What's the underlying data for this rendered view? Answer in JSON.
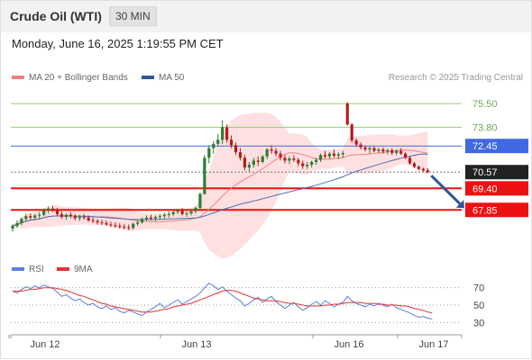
{
  "header": {
    "title": "Crude Oil (WTI)",
    "timeframe": "30 MIN"
  },
  "datetime": "Monday, June 16, 2025 1:19:55 PM CET",
  "legend": {
    "ma_bb": "MA 20 + Bollinger Bands",
    "ma50": "MA 50",
    "credit": "Research © 2025 Trading Central"
  },
  "rsi_legend": {
    "rsi": "RSI",
    "ma9": "9MA"
  },
  "colors": {
    "bands": "#ffd6d6",
    "ma20": "#f08080",
    "ma50": "#4a6fb5",
    "up": "#2e7d32",
    "down": "#b71c1c",
    "support": "#ee1111",
    "pivot": "#4169e1",
    "resistance": "#90d070",
    "current": "#222222",
    "rsi": "#5b7fdb",
    "rsi_ma": "#e33333"
  },
  "chart_data": [
    {
      "type": "candlestick",
      "x_labels": [
        "Jun 12",
        "Jun 13",
        "Jun 16",
        "Jun 17"
      ],
      "ylim": [
        64.5,
        76.8
      ],
      "levels": [
        {
          "value": 75.5,
          "label": "75.50",
          "kind": "resistance"
        },
        {
          "value": 73.8,
          "label": "73.80",
          "kind": "resistance"
        },
        {
          "value": 72.45,
          "label": "72.45",
          "kind": "pivot"
        },
        {
          "value": 70.57,
          "label": "70.57",
          "kind": "current"
        },
        {
          "value": 69.4,
          "label": "69.40",
          "kind": "support"
        },
        {
          "value": 67.85,
          "label": "67.85",
          "kind": "support"
        }
      ],
      "ohlc": [
        [
          66.5,
          66.85,
          66.3,
          66.7
        ],
        [
          66.7,
          67.1,
          66.55,
          66.9
        ],
        [
          66.9,
          67.3,
          66.75,
          67.2
        ],
        [
          67.2,
          67.55,
          67.0,
          67.4
        ],
        [
          67.4,
          67.6,
          67.15,
          67.3
        ],
        [
          67.3,
          67.55,
          67.1,
          67.45
        ],
        [
          67.45,
          67.7,
          67.25,
          67.5
        ],
        [
          67.5,
          67.95,
          67.4,
          67.85
        ],
        [
          67.85,
          68.1,
          67.6,
          67.95
        ],
        [
          67.95,
          68.15,
          67.7,
          67.8
        ],
        [
          67.8,
          68.0,
          67.4,
          67.55
        ],
        [
          67.55,
          67.75,
          67.2,
          67.35
        ],
        [
          67.35,
          67.6,
          67.15,
          67.5
        ],
        [
          67.5,
          67.7,
          67.25,
          67.4
        ],
        [
          67.4,
          67.55,
          67.1,
          67.25
        ],
        [
          67.25,
          67.5,
          67.05,
          67.35
        ],
        [
          67.35,
          67.55,
          67.15,
          67.3
        ],
        [
          67.3,
          67.45,
          67.0,
          67.1
        ],
        [
          67.1,
          67.3,
          66.9,
          67.05
        ],
        [
          67.05,
          67.2,
          66.8,
          66.95
        ],
        [
          66.95,
          67.15,
          66.75,
          66.9
        ],
        [
          66.9,
          67.1,
          66.7,
          66.8
        ],
        [
          66.8,
          67.0,
          66.6,
          66.75
        ],
        [
          66.75,
          66.95,
          66.55,
          66.7
        ],
        [
          66.7,
          66.9,
          66.5,
          66.65
        ],
        [
          66.65,
          66.85,
          66.45,
          66.6
        ],
        [
          66.6,
          66.8,
          66.4,
          66.55
        ],
        [
          66.55,
          66.95,
          66.45,
          66.85
        ],
        [
          66.85,
          67.1,
          66.7,
          66.95
        ],
        [
          66.95,
          67.3,
          66.85,
          67.2
        ],
        [
          67.2,
          67.45,
          67.05,
          67.3
        ],
        [
          67.3,
          67.5,
          67.1,
          67.25
        ],
        [
          67.25,
          67.45,
          67.05,
          67.35
        ],
        [
          67.35,
          67.55,
          67.15,
          67.4
        ],
        [
          67.4,
          67.65,
          67.25,
          67.5
        ],
        [
          67.5,
          67.75,
          67.3,
          67.55
        ],
        [
          67.55,
          67.85,
          67.4,
          67.7
        ],
        [
          67.7,
          67.95,
          67.55,
          67.8
        ],
        [
          67.8,
          68.0,
          67.45,
          67.55
        ],
        [
          67.55,
          67.75,
          67.35,
          67.6
        ],
        [
          67.6,
          67.85,
          67.45,
          67.75
        ],
        [
          67.75,
          68.1,
          67.6,
          68.0
        ],
        [
          68.0,
          69.1,
          67.9,
          69.0
        ],
        [
          69.0,
          71.8,
          68.95,
          71.6
        ],
        [
          71.6,
          72.5,
          71.2,
          72.3
        ],
        [
          72.3,
          72.8,
          71.9,
          72.6
        ],
        [
          72.6,
          73.3,
          72.4,
          72.9
        ],
        [
          72.9,
          74.3,
          72.6,
          73.8
        ],
        [
          73.8,
          74.0,
          72.7,
          72.9
        ],
        [
          72.9,
          73.2,
          72.3,
          72.5
        ],
        [
          72.5,
          72.7,
          71.8,
          72.0
        ],
        [
          72.0,
          72.3,
          71.4,
          71.6
        ],
        [
          71.6,
          71.8,
          70.7,
          70.9
        ],
        [
          70.9,
          71.3,
          70.6,
          71.1
        ],
        [
          71.1,
          71.6,
          70.9,
          71.4
        ],
        [
          71.4,
          71.7,
          71.0,
          71.3
        ],
        [
          71.3,
          71.8,
          71.2,
          71.7
        ],
        [
          71.7,
          72.3,
          71.5,
          72.2
        ],
        [
          72.2,
          72.5,
          71.9,
          72.1
        ],
        [
          72.1,
          72.3,
          71.7,
          71.9
        ],
        [
          71.9,
          72.1,
          71.4,
          71.6
        ],
        [
          71.6,
          71.8,
          71.2,
          71.4
        ],
        [
          71.4,
          71.7,
          71.15,
          71.55
        ],
        [
          71.55,
          71.8,
          71.3,
          71.45
        ],
        [
          71.45,
          71.6,
          71.0,
          71.2
        ],
        [
          71.2,
          71.4,
          70.8,
          71.0
        ],
        [
          71.0,
          71.3,
          70.8,
          71.1
        ],
        [
          71.1,
          71.4,
          70.9,
          71.3
        ],
        [
          71.3,
          71.6,
          71.1,
          71.45
        ],
        [
          71.45,
          71.9,
          71.3,
          71.8
        ],
        [
          71.8,
          72.1,
          71.55,
          71.7
        ],
        [
          71.7,
          72.0,
          71.5,
          71.9
        ],
        [
          71.9,
          72.2,
          71.6,
          71.75
        ],
        [
          71.75,
          72.0,
          71.5,
          71.85
        ],
        [
          71.85,
          72.1,
          71.6,
          71.95
        ],
        [
          75.5,
          75.6,
          73.9,
          74.0
        ],
        [
          74.0,
          74.1,
          72.7,
          72.85
        ],
        [
          72.85,
          73.0,
          72.4,
          72.55
        ],
        [
          72.55,
          72.7,
          72.2,
          72.35
        ],
        [
          72.35,
          72.5,
          72.05,
          72.2
        ],
        [
          72.2,
          72.4,
          71.9,
          72.3
        ],
        [
          72.3,
          72.45,
          72.0,
          72.1
        ],
        [
          72.1,
          72.3,
          71.95,
          72.2
        ],
        [
          72.2,
          72.35,
          71.9,
          72.05
        ],
        [
          72.05,
          72.25,
          71.85,
          72.15
        ],
        [
          72.15,
          72.3,
          71.8,
          71.95
        ],
        [
          71.95,
          72.2,
          71.8,
          72.1
        ],
        [
          72.1,
          72.3,
          71.8,
          71.9
        ],
        [
          71.9,
          72.0,
          71.5,
          71.6
        ],
        [
          71.6,
          71.7,
          71.1,
          71.2
        ],
        [
          71.2,
          71.3,
          70.85,
          70.95
        ],
        [
          70.95,
          71.05,
          70.7,
          70.8
        ],
        [
          70.8,
          70.9,
          70.6,
          70.7
        ],
        [
          70.7,
          70.85,
          70.5,
          70.57
        ]
      ],
      "forecast": [
        70.57,
        68.1
      ]
    },
    {
      "type": "line",
      "name": "RSI",
      "y_ticks": [
        70,
        50,
        30
      ],
      "ylim": [
        20,
        80
      ],
      "rsi": [
        66,
        64,
        68,
        71,
        69,
        72,
        70,
        73,
        71,
        69,
        65,
        60,
        62,
        58,
        55,
        57,
        53,
        50,
        52,
        48,
        46,
        49,
        45,
        47,
        43,
        41,
        44,
        42,
        40,
        38,
        42,
        45,
        48,
        52,
        47,
        50,
        53,
        56,
        51,
        54,
        57,
        60,
        64,
        70,
        75,
        72,
        68,
        71,
        66,
        62,
        58,
        55,
        49,
        52,
        56,
        59,
        53,
        57,
        60,
        54,
        50,
        46,
        50,
        53,
        48,
        44,
        47,
        51,
        54,
        50,
        55,
        52,
        48,
        51,
        53,
        60,
        55,
        52,
        50,
        48,
        51,
        49,
        52,
        50,
        48,
        51,
        47,
        45,
        43,
        41,
        38,
        36,
        37,
        35,
        34
      ],
      "rsi_ma": [
        66,
        66,
        66,
        67,
        68,
        68,
        69,
        70,
        70,
        70,
        69,
        68,
        67,
        65,
        63,
        61,
        60,
        58,
        56,
        54,
        52,
        51,
        49,
        48,
        47,
        46,
        45,
        44,
        43,
        42,
        42,
        42,
        43,
        44,
        45,
        46,
        48,
        49,
        50,
        51,
        52,
        54,
        56,
        58,
        60,
        62,
        64,
        66,
        67,
        67,
        66,
        64,
        62,
        60,
        58,
        57,
        56,
        55,
        55,
        55,
        54,
        53,
        52,
        52,
        51,
        50,
        49,
        49,
        49,
        49,
        50,
        50,
        51,
        51,
        52,
        53,
        53,
        53,
        53,
        52,
        52,
        52,
        51,
        51,
        50,
        50,
        50,
        49,
        49,
        48,
        46,
        45,
        44,
        42,
        41
      ]
    }
  ]
}
